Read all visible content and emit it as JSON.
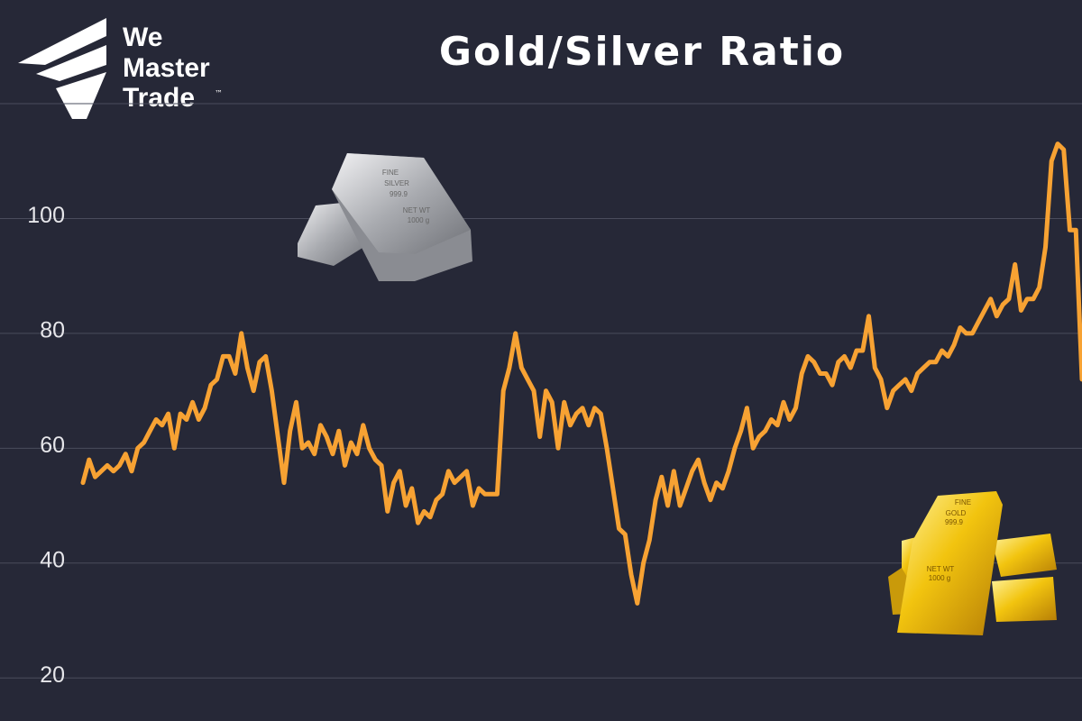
{
  "brand": {
    "lines": [
      "We",
      "Master",
      "Trade"
    ],
    "mark": "™"
  },
  "silver_bar": [
    "FINE",
    "SILVER",
    "999.9",
    "NET WT",
    "1000 g"
  ],
  "gold_bar": [
    "FINE",
    "GOLD",
    "999.9",
    "NET WT",
    "1000 g"
  ],
  "chart_data": {
    "type": "line",
    "title": "Gold/Silver Ratio",
    "color": "#f7a233",
    "values": [
      54,
      58,
      55,
      56,
      57,
      56,
      57,
      59,
      56,
      60,
      61,
      63,
      65,
      64,
      66,
      60,
      66,
      65,
      68,
      65,
      67,
      71,
      72,
      76,
      76,
      73,
      80,
      74,
      70,
      75,
      76,
      70,
      62,
      54,
      63,
      68,
      60,
      61,
      59,
      64,
      62,
      59,
      63,
      57,
      61,
      59,
      64,
      60,
      58,
      57,
      49,
      54,
      56,
      50,
      53,
      47,
      49,
      48,
      51,
      52,
      56,
      54,
      55,
      56,
      50,
      53,
      52,
      52,
      52,
      70,
      74,
      80,
      74,
      72,
      70,
      62,
      70,
      68,
      60,
      68,
      64,
      66,
      67,
      64,
      67,
      66,
      60,
      53,
      46,
      45,
      38,
      33,
      40,
      44,
      51,
      55,
      50,
      56,
      50,
      53,
      56,
      58,
      54,
      51,
      54,
      53,
      56,
      60,
      63,
      67,
      60,
      62,
      63,
      65,
      64,
      68,
      65,
      67,
      73,
      76,
      75,
      73,
      73,
      71,
      75,
      76,
      74,
      77,
      77,
      83,
      74,
      72,
      67,
      70,
      71,
      72,
      70,
      73,
      74,
      75,
      75,
      77,
      76,
      78,
      81,
      80,
      80,
      82,
      84,
      86,
      83,
      85,
      86,
      92,
      84,
      86,
      86,
      88,
      95,
      110,
      113,
      112,
      98,
      98,
      72
    ],
    "ylim": [
      12.5,
      120
    ],
    "yticks": [
      20,
      40,
      60,
      80,
      100
    ],
    "grid": true
  }
}
